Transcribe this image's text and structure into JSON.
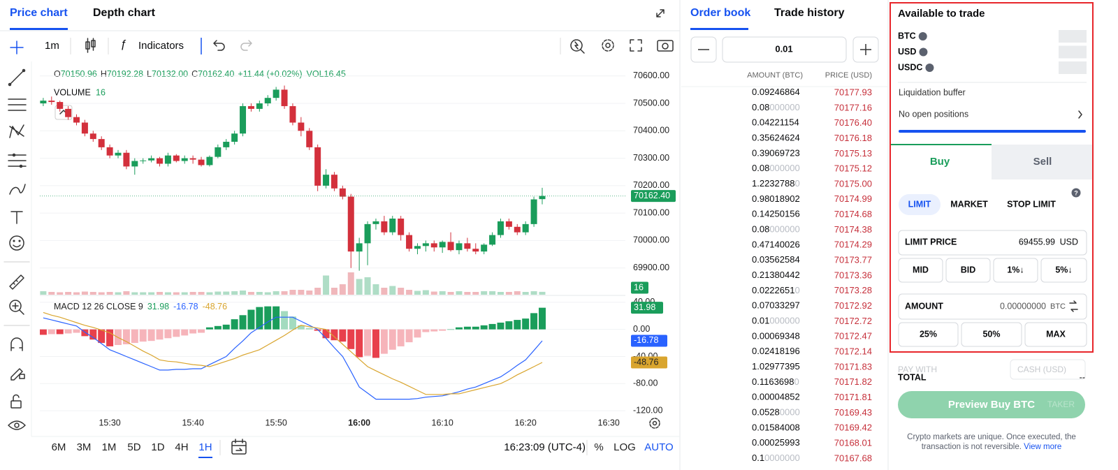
{
  "tabs": {
    "price_chart": "Price chart",
    "depth_chart": "Depth chart"
  },
  "toolbar": {
    "interval": "1m",
    "indicators": "Indicators"
  },
  "price_chart": {
    "type": "candlestick",
    "ohlc": [
      {
        "k": "O",
        "v": "70150.96"
      },
      {
        "k": "H",
        "v": "70192.28"
      },
      {
        "k": "L",
        "v": "70132.00"
      },
      {
        "k": "C",
        "v": "70162.40"
      }
    ],
    "change": "+11.44 (+0.02%)",
    "vol": "VOL16.45",
    "colors": {
      "up": "#1a9d5b",
      "down": "#d3303c"
    },
    "x": [
      "15:22",
      "15:23",
      "15:24",
      "15:25",
      "15:26",
      "15:27",
      "15:28",
      "15:29",
      "15:30",
      "15:31",
      "15:32",
      "15:33",
      "15:34",
      "15:35",
      "15:36",
      "15:37",
      "15:38",
      "15:39",
      "15:40",
      "15:41",
      "15:42",
      "15:43",
      "15:44",
      "15:45",
      "15:46",
      "15:47",
      "15:48",
      "15:49",
      "15:50",
      "15:51",
      "15:52",
      "15:53",
      "15:54",
      "15:55",
      "15:56",
      "15:57",
      "15:58",
      "15:59",
      "16:00",
      "16:01",
      "16:02",
      "16:03",
      "16:04",
      "16:05",
      "16:06",
      "16:07",
      "16:08",
      "16:09",
      "16:10",
      "16:11",
      "16:12",
      "16:13",
      "16:14",
      "16:15",
      "16:16",
      "16:17",
      "16:18",
      "16:19",
      "16:20",
      "16:21",
      "16:22"
    ],
    "open": [
      70500,
      70510,
      70505,
      70480,
      70450,
      70430,
      70390,
      70370,
      70340,
      70310,
      70320,
      70270,
      70290,
      70292,
      70300,
      70280,
      70310,
      70290,
      70300,
      70295,
      70275,
      70305,
      70340,
      70360,
      70390,
      70490,
      70480,
      70500,
      70520,
      70550,
      70490,
      70430,
      70400,
      70340,
      70200,
      70240,
      70190,
      70160,
      69960,
      69990,
      70060,
      70070,
      70030,
      70080,
      70020,
      69970,
      69980,
      69990,
      69975,
      69995,
      69965,
      69990,
      69970,
      69960,
      69985,
      70020,
      70070,
      70050,
      70030,
      70060,
      70150.96
    ],
    "high": [
      70520,
      70525,
      70510,
      70490,
      70460,
      70440,
      70400,
      70380,
      70350,
      70330,
      70330,
      70300,
      70300,
      70310,
      70305,
      70320,
      70315,
      70310,
      70310,
      70305,
      70310,
      70350,
      70370,
      70400,
      70500,
      70500,
      70510,
      70530,
      70560,
      70565,
      70500,
      70450,
      70410,
      70350,
      70260,
      70250,
      70200,
      70170,
      70010,
      70070,
      70080,
      70090,
      70090,
      70090,
      70030,
      69990,
      70000,
      70000,
      70000,
      70030,
      70000,
      70010,
      69990,
      69990,
      70030,
      70080,
      70080,
      70060,
      70070,
      70160,
      70192.28
    ],
    "low": [
      70490,
      70495,
      70470,
      70440,
      70420,
      70380,
      70360,
      70330,
      70300,
      70300,
      70260,
      70240,
      70280,
      70285,
      70270,
      70270,
      70285,
      70280,
      70280,
      70270,
      70270,
      70300,
      70330,
      70350,
      70380,
      70470,
      70470,
      70490,
      70510,
      70480,
      70420,
      70380,
      70330,
      70180,
      70190,
      70180,
      70150,
      69900,
      69890,
      69910,
      70040,
      70020,
      70020,
      70000,
      69960,
      69950,
      69960,
      69960,
      69955,
      69960,
      69950,
      69960,
      69950,
      69950,
      69980,
      70010,
      70040,
      70020,
      70020,
      70050,
      70132
    ],
    "close": [
      70510,
      70505,
      70480,
      70450,
      70430,
      70390,
      70370,
      70340,
      70310,
      70320,
      70270,
      70290,
      70292,
      70300,
      70280,
      70310,
      70290,
      70300,
      70295,
      70275,
      70305,
      70340,
      70360,
      70390,
      70490,
      70480,
      70500,
      70520,
      70550,
      70490,
      70430,
      70400,
      70340,
      70200,
      70240,
      70190,
      70160,
      69960,
      69990,
      70060,
      70070,
      70030,
      70080,
      70020,
      69970,
      69980,
      69990,
      69975,
      69995,
      69965,
      69990,
      69970,
      69960,
      69985,
      70020,
      70070,
      70050,
      70030,
      70060,
      70150,
      70162.4
    ],
    "close_label": "70162.40",
    "xlim": [
      "15:21",
      "16:32"
    ],
    "xticks": [
      "15:30",
      "15:40",
      "15:50",
      "16:00",
      "16:10",
      "16:20",
      "16:30"
    ],
    "bold_xtick": 3,
    "ylim": [
      69800,
      70635
    ],
    "yticks": [
      {
        "value": 69900,
        "label": "69900.00"
      },
      {
        "value": 70000,
        "label": "70000.00"
      },
      {
        "value": 70100,
        "label": "70100.00"
      },
      {
        "value": 70200,
        "label": "70200.00"
      },
      {
        "value": 70300,
        "label": "70300.00"
      },
      {
        "value": 70400,
        "label": "70400.00"
      },
      {
        "value": 70500,
        "label": "70500.00"
      },
      {
        "value": 70600,
        "label": "70600.00"
      }
    ],
    "grid": true,
    "volume": {
      "title": "VOLUME",
      "label": "16",
      "values": [
        20,
        16,
        14,
        16,
        14,
        18,
        16,
        14,
        16,
        14,
        20,
        14,
        14,
        14,
        16,
        14,
        14,
        14,
        16,
        16,
        14,
        18,
        18,
        20,
        24,
        16,
        16,
        14,
        20,
        20,
        28,
        28,
        24,
        40,
        110,
        40,
        60,
        128,
        90,
        100,
        60,
        40,
        50,
        40,
        28,
        22,
        26,
        18,
        20,
        16,
        20,
        16,
        16,
        20,
        20,
        16,
        16,
        20,
        16,
        20,
        16.45
      ]
    },
    "macd": {
      "title": "MACD 12 26 CLOSE 9",
      "ylim": [
        -124,
        45
      ],
      "yticks": [
        {
          "value": -120,
          "label": "-120.00"
        },
        {
          "value": -80,
          "label": "-80.00"
        },
        {
          "value": -40,
          "label": "-40.00"
        },
        {
          "value": 0,
          "label": "0.00"
        },
        {
          "value": 40,
          "label": "40.00"
        }
      ],
      "hist_colors": [
        "#1a9d5b",
        "#a3dbbf",
        "#e8404c",
        "#f6b4ba"
      ],
      "histogram": {
        "values": [
          -8,
          -7,
          -7,
          -6,
          -5,
          -10,
          -15,
          -20,
          -25,
          -23,
          -22,
          -20,
          -18,
          -17,
          -15,
          -13,
          -11,
          -9,
          -6,
          -5,
          3,
          5,
          7,
          15,
          21,
          29,
          33,
          34,
          34,
          27,
          19,
          6,
          2,
          -2,
          -13,
          -16,
          -18,
          -29,
          -41,
          -39,
          -42,
          -36,
          -30,
          -25,
          -19,
          -12,
          -4,
          -3,
          -2,
          0,
          3,
          4,
          4,
          6,
          8,
          10,
          12,
          14,
          16,
          24,
          31.98
        ]
      },
      "macd": {
        "color": "#2962ff",
        "values": [
          17,
          14,
          11,
          8,
          5,
          -4,
          -12,
          -21,
          -30,
          -35,
          -40,
          -45,
          -50,
          -55,
          -60,
          -60,
          -59,
          -59,
          -58,
          -58,
          -52,
          -46,
          -40,
          -28,
          -17,
          -5,
          3,
          11,
          18,
          18,
          18,
          12,
          6,
          0,
          -13,
          -27,
          -40,
          -62,
          -85,
          -94,
          -103,
          -103,
          -103,
          -103,
          -103,
          -102,
          -100,
          -99,
          -98,
          -95,
          -92,
          -88,
          -85,
          -80,
          -75,
          -70,
          -62,
          -53,
          -45,
          -31,
          -16.78
        ]
      },
      "signal": {
        "color": "#d9a52e",
        "values": [
          25,
          21,
          18,
          14,
          10,
          6,
          3,
          -1,
          -5,
          -12,
          -18,
          -25,
          -32,
          -38,
          -45,
          -47,
          -48,
          -50,
          -52,
          -53,
          -55,
          -51,
          -47,
          -43,
          -38,
          -34,
          -30,
          -23,
          -16,
          -9,
          -1,
          6,
          4,
          2,
          0,
          -11,
          -22,
          -33,
          -44,
          -55,
          -61,
          -67,
          -73,
          -78,
          -84,
          -90,
          -96,
          -96,
          -96,
          -95,
          -95,
          -92,
          -89,
          -86,
          -83,
          -80,
          -74,
          -67,
          -61,
          -55,
          -48.76
        ]
      }
    }
  },
  "ranges": [
    "6M",
    "3M",
    "1M",
    "5D",
    "1D",
    "4H",
    "1H"
  ],
  "active_range": 6,
  "clock": "16:23:09 (UTC-4)",
  "scale_buttons": [
    "%",
    "LOG",
    "AUTO"
  ],
  "order_book": {
    "tabs": [
      "Order book",
      "Trade history"
    ],
    "step": "0.01",
    "headers": [
      "AMOUNT (BTC)",
      "PRICE (USD)"
    ],
    "rows": [
      {
        "amount": "0.09246864",
        "price": "70177.93"
      },
      {
        "amount": "0.08",
        "pad": "000000",
        "price": "70177.16"
      },
      {
        "amount": "0.04221154",
        "price": "70176.40"
      },
      {
        "amount": "0.35624624",
        "price": "70176.18"
      },
      {
        "amount": "0.39069723",
        "price": "70175.13"
      },
      {
        "amount": "0.08",
        "pad": "000000",
        "price": "70175.12"
      },
      {
        "amount": "1.2232788",
        "pad": "0",
        "price": "70175.00"
      },
      {
        "amount": "0.98018902",
        "price": "70174.99"
      },
      {
        "amount": "0.14250156",
        "price": "70174.68"
      },
      {
        "amount": "0.08",
        "pad": "000000",
        "price": "70174.38"
      },
      {
        "amount": "0.47140026",
        "price": "70174.29"
      },
      {
        "amount": "0.03562584",
        "price": "70173.77"
      },
      {
        "amount": "0.21380442",
        "price": "70173.36"
      },
      {
        "amount": "0.0222651",
        "pad": "0",
        "price": "70173.28"
      },
      {
        "amount": "0.07033297",
        "price": "70172.92"
      },
      {
        "amount": "0.01",
        "pad": "000000",
        "price": "70172.72"
      },
      {
        "amount": "0.00069348",
        "price": "70172.47"
      },
      {
        "amount": "0.02418196",
        "price": "70172.14"
      },
      {
        "amount": "1.02977395",
        "price": "70171.83"
      },
      {
        "amount": "0.1163698",
        "pad": "0",
        "price": "70171.82"
      },
      {
        "amount": "0.00004852",
        "price": "70171.81"
      },
      {
        "amount": "0.0528",
        "pad": "0000",
        "price": "70169.43"
      },
      {
        "amount": "0.01584008",
        "price": "70169.42"
      },
      {
        "amount": "0.00025993",
        "price": "70168.01"
      },
      {
        "amount": "0.1",
        "pad": "0000000",
        "price": "70167.68"
      }
    ]
  },
  "trade": {
    "title": "Available to trade",
    "assets": [
      "BTC",
      "USD",
      "USDC"
    ],
    "liquidation": "Liquidation buffer",
    "positions": "No open positions",
    "sides": [
      "Buy",
      "Sell"
    ],
    "order_types": [
      "LIMIT",
      "MARKET",
      "STOP LIMIT"
    ],
    "limit_price": {
      "label": "LIMIT PRICE",
      "value": "69455.99",
      "unit": "USD"
    },
    "price_buttons": [
      "MID",
      "BID",
      "1%↓",
      "5%↓"
    ],
    "amount": {
      "label": "AMOUNT",
      "value": "0.00000000",
      "unit": "BTC"
    },
    "amount_buttons": [
      "25%",
      "50%",
      "MAX"
    ],
    "pay_with": "PAY WITH",
    "pay_method": "CASH (USD)",
    "total": {
      "label": "TOTAL",
      "value": "--"
    },
    "taker": "TAKER",
    "submit": "Preview Buy BTC",
    "notice": [
      "Crypto markets are unique. Once executed, the",
      "transaction is not reversible."
    ],
    "view_more": "View more"
  }
}
